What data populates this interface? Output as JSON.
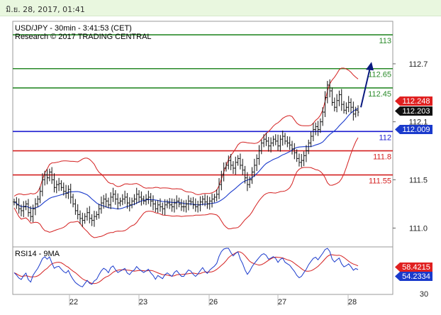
{
  "header": {
    "date_time": "มิ.ย. 28, 2017, 01:41"
  },
  "chart_data": {
    "type": "candlestick",
    "instrument_line": "USD/JPY - 30min - 3:41:53 (CET)",
    "research_line": "Research © 2017 TRADING CENTRAL",
    "y_ticks": [
      "112.7",
      "112.1",
      "111.5",
      "111.0"
    ],
    "y_range": [
      110.82,
      113.14
    ],
    "x_ticks": [
      "22",
      "23",
      "26",
      "27",
      "28"
    ],
    "levels": [
      {
        "label": "113",
        "value": 113.0,
        "color": "#2a8a2a",
        "text_color": "#2a8a2a"
      },
      {
        "label": "112.65",
        "value": 112.65,
        "color": "#2a8a2a",
        "text_color": "#2a8a2a"
      },
      {
        "label": "112.45",
        "value": 112.45,
        "color": "#2a8a2a",
        "text_color": "#2a8a2a"
      },
      {
        "label": "112",
        "value": 112.0,
        "color": "#1a1ad0",
        "text_color": "#1a1ad0"
      },
      {
        "label": "111.8",
        "value": 111.8,
        "color": "#d42020",
        "text_color": "#d42020"
      },
      {
        "label": "111.55",
        "value": 111.55,
        "color": "#d42020",
        "text_color": "#d42020"
      }
    ],
    "price_tags": [
      {
        "label": "112.248",
        "value": 112.248,
        "bg": "#e02020",
        "fg": "#ffffff"
      },
      {
        "label": "112.203",
        "value": 112.203,
        "bg": "#111111",
        "fg": "#ffffff"
      },
      {
        "label": "112.009",
        "value": 112.009,
        "bg": "#1a3acc",
        "fg": "#ffffff"
      }
    ],
    "forecast_arrow": {
      "from_value": 112.25,
      "to_value": 112.72,
      "color": "#0a1a80"
    },
    "indicator": {
      "name": "RSI14 - 9MA",
      "y_tick": "30",
      "tags": [
        {
          "label": "58.4215",
          "bg": "#e02020",
          "fg": "#ffffff"
        },
        {
          "label": "54.2334",
          "bg": "#1a3acc",
          "fg": "#ffffff"
        }
      ]
    },
    "colors": {
      "price": "#111111",
      "bollinger": "#d42020",
      "ma": "#1a3acc",
      "rsi": "#1a3acc",
      "rsi_ma": "#d42020"
    },
    "closes": [
      111.27,
      111.24,
      111.2,
      111.18,
      111.22,
      111.25,
      111.16,
      111.12,
      111.2,
      111.25,
      111.3,
      111.38,
      111.5,
      111.55,
      111.52,
      111.58,
      111.5,
      111.42,
      111.45,
      111.46,
      111.42,
      111.38,
      111.36,
      111.4,
      111.32,
      111.25,
      111.18,
      111.14,
      111.1,
      111.08,
      111.12,
      111.16,
      111.1,
      111.08,
      111.12,
      111.14,
      111.2,
      111.26,
      111.3,
      111.28,
      111.24,
      111.32,
      111.35,
      111.3,
      111.26,
      111.28,
      111.3,
      111.32,
      111.26,
      111.24,
      111.28,
      111.3,
      111.35,
      111.32,
      111.3,
      111.28,
      111.3,
      111.32,
      111.28,
      111.25,
      111.2,
      111.24,
      111.22,
      111.2,
      111.24,
      111.26,
      111.24,
      111.22,
      111.26,
      111.28,
      111.25,
      111.22,
      111.22,
      111.25,
      111.28,
      111.27,
      111.24,
      111.22,
      111.24,
      111.27,
      111.3,
      111.27,
      111.25,
      111.28,
      111.3,
      111.32,
      111.35,
      111.45,
      111.55,
      111.62,
      111.65,
      111.7,
      111.65,
      111.62,
      111.68,
      111.72,
      111.65,
      111.6,
      111.52,
      111.45,
      111.5,
      111.58,
      111.65,
      111.72,
      111.8,
      111.88,
      111.92,
      111.9,
      111.85,
      111.88,
      111.92,
      111.9,
      111.85,
      111.92,
      111.95,
      111.9,
      111.88,
      111.86,
      111.82,
      111.78,
      111.72,
      111.68,
      111.7,
      111.75,
      111.8,
      111.88,
      111.95,
      112.02,
      112.05,
      112.02,
      112.1,
      112.2,
      112.35,
      112.48,
      112.42,
      112.3,
      112.25,
      112.32,
      112.38,
      112.28,
      112.22,
      112.25,
      112.3,
      112.25,
      112.18,
      112.22,
      112.2
    ]
  }
}
